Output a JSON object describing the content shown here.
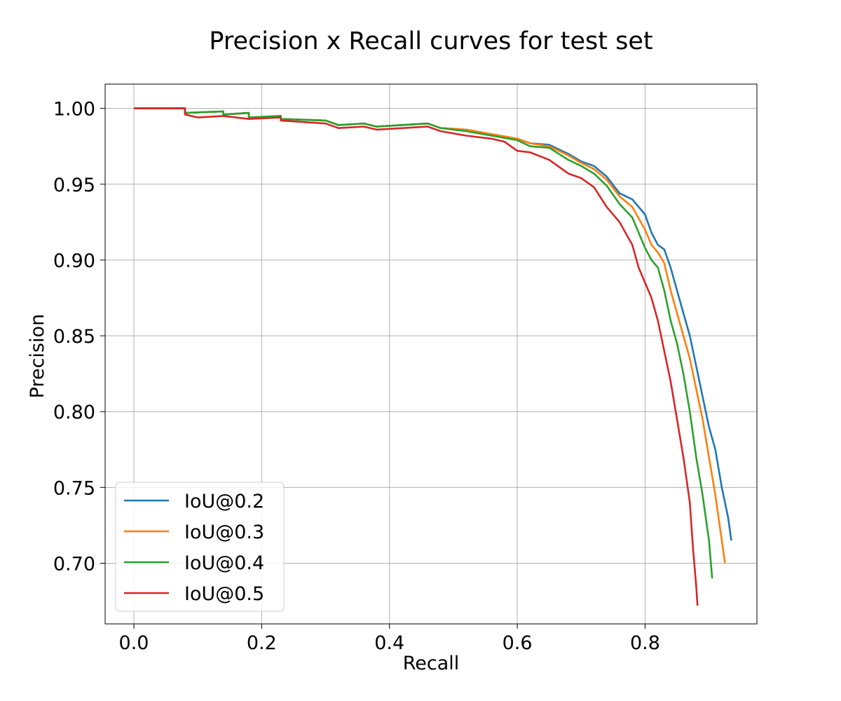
{
  "chart_data": {
    "type": "line",
    "title": "Precision x Recall curves for test set",
    "xlabel": "Recall",
    "ylabel": "Precision",
    "xlim": [
      -0.045,
      0.975
    ],
    "ylim": [
      0.66,
      1.016
    ],
    "xticks": [
      0.0,
      0.2,
      0.4,
      0.6,
      0.8
    ],
    "xtick_labels": [
      "0.0",
      "0.2",
      "0.4",
      "0.6",
      "0.8"
    ],
    "yticks": [
      0.7,
      0.75,
      0.8,
      0.85,
      0.9,
      0.95,
      1.0
    ],
    "ytick_labels": [
      "0.70",
      "0.75",
      "0.80",
      "0.85",
      "0.90",
      "0.95",
      "1.00"
    ],
    "grid": true,
    "legend_position": "lower-left",
    "series": [
      {
        "name": "IoU@0.2",
        "color": "#1f77b4",
        "points": [
          [
            0,
            1.0
          ],
          [
            0.08,
            1.0
          ],
          [
            0.08,
            0.997
          ],
          [
            0.14,
            0.998
          ],
          [
            0.14,
            0.996
          ],
          [
            0.18,
            0.997
          ],
          [
            0.18,
            0.994
          ],
          [
            0.23,
            0.995
          ],
          [
            0.23,
            0.993
          ],
          [
            0.3,
            0.992
          ],
          [
            0.32,
            0.989
          ],
          [
            0.36,
            0.99
          ],
          [
            0.38,
            0.988
          ],
          [
            0.46,
            0.99
          ],
          [
            0.48,
            0.987
          ],
          [
            0.52,
            0.986
          ],
          [
            0.56,
            0.983
          ],
          [
            0.6,
            0.98
          ],
          [
            0.62,
            0.977
          ],
          [
            0.65,
            0.976
          ],
          [
            0.68,
            0.97
          ],
          [
            0.7,
            0.965
          ],
          [
            0.72,
            0.962
          ],
          [
            0.74,
            0.955
          ],
          [
            0.76,
            0.944
          ],
          [
            0.78,
            0.94
          ],
          [
            0.8,
            0.93
          ],
          [
            0.81,
            0.918
          ],
          [
            0.82,
            0.91
          ],
          [
            0.83,
            0.907
          ],
          [
            0.84,
            0.895
          ],
          [
            0.85,
            0.88
          ],
          [
            0.86,
            0.865
          ],
          [
            0.87,
            0.85
          ],
          [
            0.88,
            0.83
          ],
          [
            0.89,
            0.81
          ],
          [
            0.9,
            0.79
          ],
          [
            0.91,
            0.775
          ],
          [
            0.92,
            0.75
          ],
          [
            0.93,
            0.73
          ],
          [
            0.935,
            0.715
          ]
        ]
      },
      {
        "name": "IoU@0.3",
        "color": "#ff7f0e",
        "points": [
          [
            0,
            1.0
          ],
          [
            0.08,
            1.0
          ],
          [
            0.08,
            0.997
          ],
          [
            0.14,
            0.998
          ],
          [
            0.14,
            0.996
          ],
          [
            0.18,
            0.997
          ],
          [
            0.18,
            0.994
          ],
          [
            0.23,
            0.995
          ],
          [
            0.23,
            0.993
          ],
          [
            0.3,
            0.992
          ],
          [
            0.32,
            0.989
          ],
          [
            0.36,
            0.99
          ],
          [
            0.38,
            0.988
          ],
          [
            0.46,
            0.99
          ],
          [
            0.48,
            0.987
          ],
          [
            0.52,
            0.986
          ],
          [
            0.56,
            0.983
          ],
          [
            0.6,
            0.98
          ],
          [
            0.62,
            0.977
          ],
          [
            0.65,
            0.975
          ],
          [
            0.68,
            0.969
          ],
          [
            0.7,
            0.964
          ],
          [
            0.72,
            0.96
          ],
          [
            0.74,
            0.953
          ],
          [
            0.76,
            0.942
          ],
          [
            0.78,
            0.935
          ],
          [
            0.8,
            0.92
          ],
          [
            0.81,
            0.91
          ],
          [
            0.82,
            0.905
          ],
          [
            0.83,
            0.898
          ],
          [
            0.84,
            0.88
          ],
          [
            0.85,
            0.865
          ],
          [
            0.86,
            0.85
          ],
          [
            0.87,
            0.835
          ],
          [
            0.88,
            0.815
          ],
          [
            0.89,
            0.795
          ],
          [
            0.9,
            0.77
          ],
          [
            0.91,
            0.745
          ],
          [
            0.92,
            0.715
          ],
          [
            0.925,
            0.7
          ]
        ]
      },
      {
        "name": "IoU@0.4",
        "color": "#2ca02c",
        "points": [
          [
            0,
            1.0
          ],
          [
            0.08,
            1.0
          ],
          [
            0.08,
            0.997
          ],
          [
            0.14,
            0.998
          ],
          [
            0.14,
            0.996
          ],
          [
            0.18,
            0.997
          ],
          [
            0.18,
            0.994
          ],
          [
            0.23,
            0.995
          ],
          [
            0.23,
            0.993
          ],
          [
            0.3,
            0.992
          ],
          [
            0.32,
            0.989
          ],
          [
            0.36,
            0.99
          ],
          [
            0.38,
            0.988
          ],
          [
            0.46,
            0.99
          ],
          [
            0.48,
            0.987
          ],
          [
            0.52,
            0.985
          ],
          [
            0.56,
            0.982
          ],
          [
            0.6,
            0.979
          ],
          [
            0.62,
            0.975
          ],
          [
            0.65,
            0.974
          ],
          [
            0.68,
            0.966
          ],
          [
            0.7,
            0.962
          ],
          [
            0.72,
            0.957
          ],
          [
            0.74,
            0.949
          ],
          [
            0.76,
            0.937
          ],
          [
            0.78,
            0.928
          ],
          [
            0.8,
            0.908
          ],
          [
            0.81,
            0.9
          ],
          [
            0.82,
            0.895
          ],
          [
            0.83,
            0.88
          ],
          [
            0.84,
            0.86
          ],
          [
            0.85,
            0.845
          ],
          [
            0.86,
            0.825
          ],
          [
            0.87,
            0.8
          ],
          [
            0.88,
            0.77
          ],
          [
            0.89,
            0.745
          ],
          [
            0.9,
            0.715
          ],
          [
            0.905,
            0.69
          ]
        ]
      },
      {
        "name": "IoU@0.5",
        "color": "#d62728",
        "points": [
          [
            0,
            1.0
          ],
          [
            0.08,
            1.0
          ],
          [
            0.08,
            0.996
          ],
          [
            0.1,
            0.994
          ],
          [
            0.14,
            0.995
          ],
          [
            0.18,
            0.993
          ],
          [
            0.23,
            0.994
          ],
          [
            0.23,
            0.992
          ],
          [
            0.3,
            0.99
          ],
          [
            0.32,
            0.987
          ],
          [
            0.36,
            0.988
          ],
          [
            0.38,
            0.986
          ],
          [
            0.46,
            0.988
          ],
          [
            0.48,
            0.985
          ],
          [
            0.52,
            0.982
          ],
          [
            0.56,
            0.98
          ],
          [
            0.58,
            0.978
          ],
          [
            0.6,
            0.972
          ],
          [
            0.62,
            0.971
          ],
          [
            0.65,
            0.966
          ],
          [
            0.68,
            0.957
          ],
          [
            0.7,
            0.954
          ],
          [
            0.72,
            0.948
          ],
          [
            0.74,
            0.935
          ],
          [
            0.76,
            0.925
          ],
          [
            0.78,
            0.91
          ],
          [
            0.79,
            0.895
          ],
          [
            0.8,
            0.885
          ],
          [
            0.81,
            0.875
          ],
          [
            0.82,
            0.86
          ],
          [
            0.83,
            0.84
          ],
          [
            0.84,
            0.82
          ],
          [
            0.85,
            0.795
          ],
          [
            0.86,
            0.77
          ],
          [
            0.87,
            0.74
          ],
          [
            0.875,
            0.71
          ],
          [
            0.88,
            0.685
          ],
          [
            0.882,
            0.672
          ]
        ]
      }
    ]
  }
}
